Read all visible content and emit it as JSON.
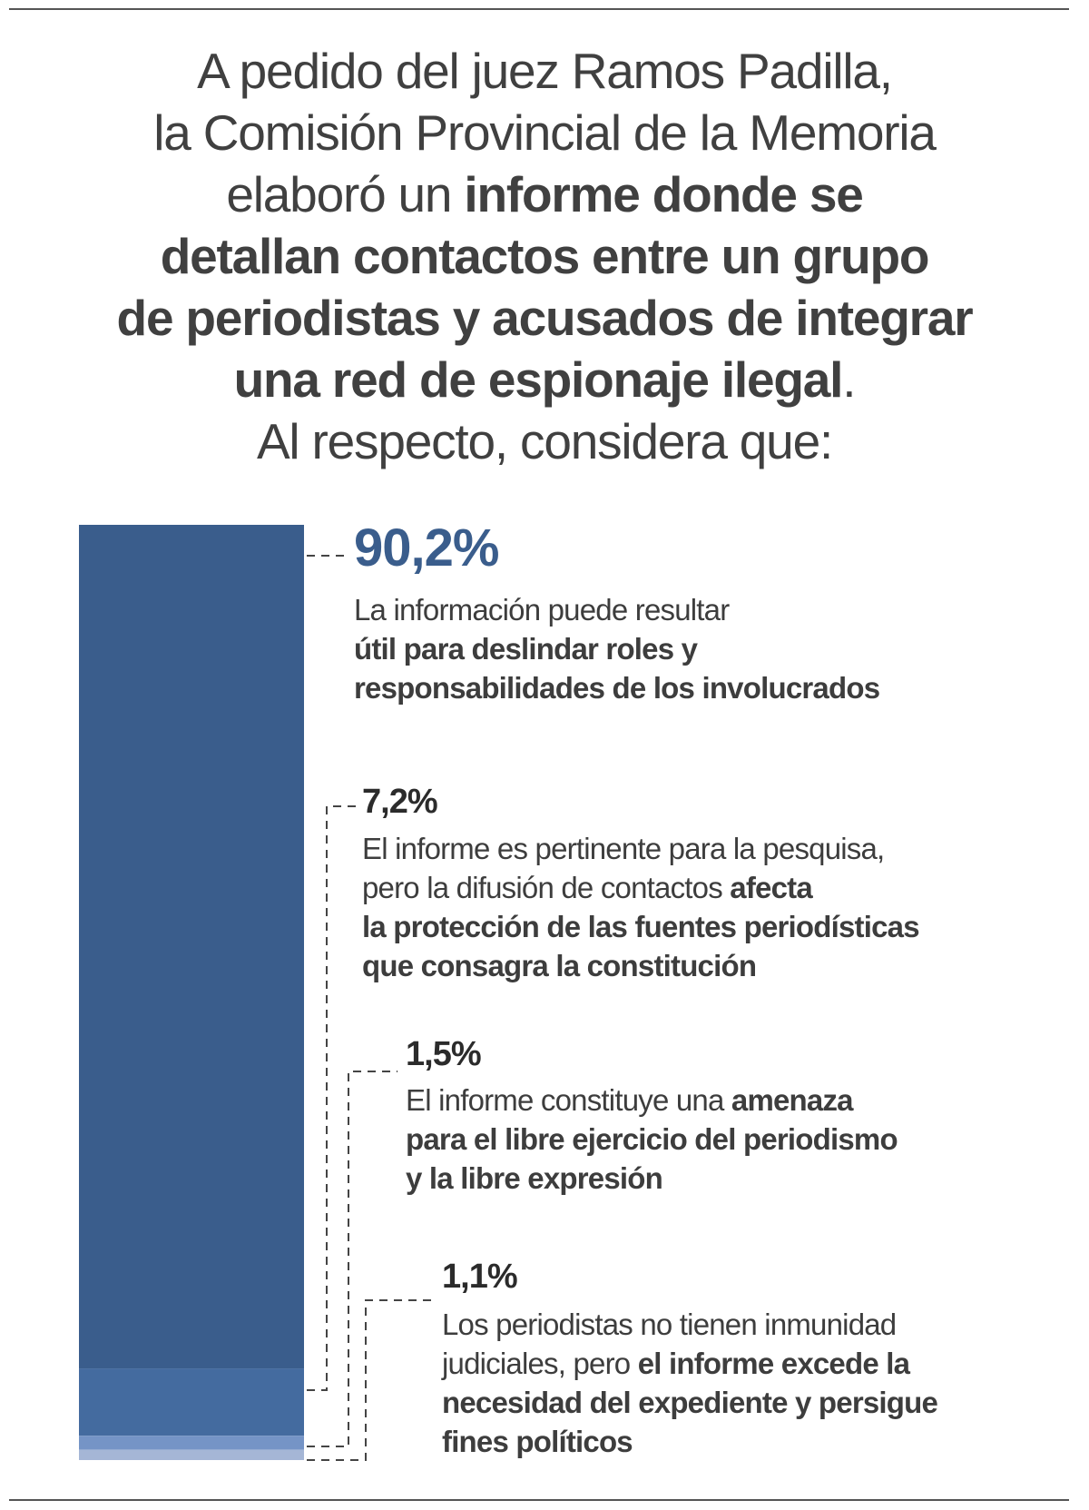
{
  "title": {
    "line1": "A pedido del juez Ramos Padilla,",
    "line2": "la Comisión Provincial de la Memoria",
    "line3_normal": "elaboró un ",
    "line3_bold": "informe donde se",
    "line4": "detallan contactos entre un grupo",
    "line5": "de periodistas y acusados de integrar",
    "line6_bold": "una red de espionaje ilegal",
    "line6_normal": ".",
    "line7": "Al respecto, considera que:"
  },
  "colors": {
    "text": "#404040",
    "accent": "#3a5d8c"
  },
  "chart_data": {
    "type": "bar",
    "stacked": true,
    "orientation": "vertical",
    "categories": [
      "útil para deslindar roles",
      "afecta la protección de fuentes",
      "amenaza para el libre ejercicio",
      "excede la necesidad del expediente"
    ],
    "values": [
      90.2,
      7.2,
      1.5,
      1.1
    ],
    "colors": [
      "#3a5d8c",
      "#446b9f",
      "#7594c6",
      "#a5b6d6"
    ],
    "labels": [
      {
        "value": "90,2%",
        "lines": [
          [
            {
              "t": "La información puede resultar",
              "b": false
            }
          ],
          [
            {
              "t": "útil para deslindar roles y",
              "b": true
            }
          ],
          [
            {
              "t": "responsabilidades de los involucrados",
              "b": true
            }
          ]
        ]
      },
      {
        "value": "7,2%",
        "lines": [
          [
            {
              "t": "El informe es pertinente para la pesquisa,",
              "b": false
            }
          ],
          [
            {
              "t": "pero la difusión de contactos ",
              "b": false
            },
            {
              "t": "afecta",
              "b": true
            }
          ],
          [
            {
              "t": "la protección de las fuentes periodísticas",
              "b": true
            }
          ],
          [
            {
              "t": "que consagra la constitución",
              "b": true
            }
          ]
        ]
      },
      {
        "value": "1,5%",
        "lines": [
          [
            {
              "t": "El informe constituye una ",
              "b": false
            },
            {
              "t": "amenaza",
              "b": true
            }
          ],
          [
            {
              "t": "para el libre ejercicio del periodismo",
              "b": true
            }
          ],
          [
            {
              "t": "y la libre expresión",
              "b": true
            }
          ]
        ]
      },
      {
        "value": "1,1%",
        "lines": [
          [
            {
              "t": "Los periodistas no tienen inmunidad",
              "b": false
            }
          ],
          [
            {
              "t": "judiciales, pero ",
              "b": false
            },
            {
              "t": "el informe excede la",
              "b": true
            }
          ],
          [
            {
              "t": "necesidad del expediente y persigue",
              "b": true
            }
          ],
          [
            {
              "t": "fines políticos",
              "b": true
            }
          ]
        ]
      }
    ]
  }
}
